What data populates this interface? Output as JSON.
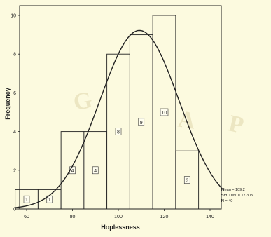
{
  "chart_data": {
    "type": "bar",
    "xlabel": "Hoplessness",
    "ylabel": "Frequency",
    "xlim": [
      60,
      140
    ],
    "ylim": [
      0,
      10
    ],
    "x_ticks": [
      "60",
      "80",
      "100",
      "120",
      "140"
    ],
    "y_ticks": [
      "0",
      "2",
      "4",
      "6",
      "8",
      "10"
    ],
    "bins": [
      {
        "x0": 55,
        "x1": 65,
        "value": 1,
        "label": "1"
      },
      {
        "x0": 65,
        "x1": 75,
        "value": 1,
        "label": "1"
      },
      {
        "x0": 75,
        "x1": 85,
        "value": 4,
        "label": "4"
      },
      {
        "x0": 85,
        "x1": 95,
        "value": 4,
        "label": "4"
      },
      {
        "x0": 95,
        "x1": 105,
        "value": 8,
        "label": "8"
      },
      {
        "x0": 105,
        "x1": 115,
        "value": 9,
        "label": "9"
      },
      {
        "x0": 115,
        "x1": 125,
        "value": 10,
        "label": "10"
      },
      {
        "x0": 125,
        "x1": 135,
        "value": 3,
        "label": "3"
      }
    ],
    "normal_curve": {
      "mean": 109.2,
      "sd": 17.3,
      "n": 40,
      "bin_width": 10
    },
    "stats": [
      "Mean = 109.2",
      "Std. Dev. = 17.305",
      "N = 40"
    ],
    "grid": false,
    "watermark": [
      "G",
      "I",
      "A",
      "P"
    ],
    "colors": {
      "bar_fill": "#fcfadf",
      "line": "#222222",
      "watermark": "#ece6c2"
    }
  }
}
